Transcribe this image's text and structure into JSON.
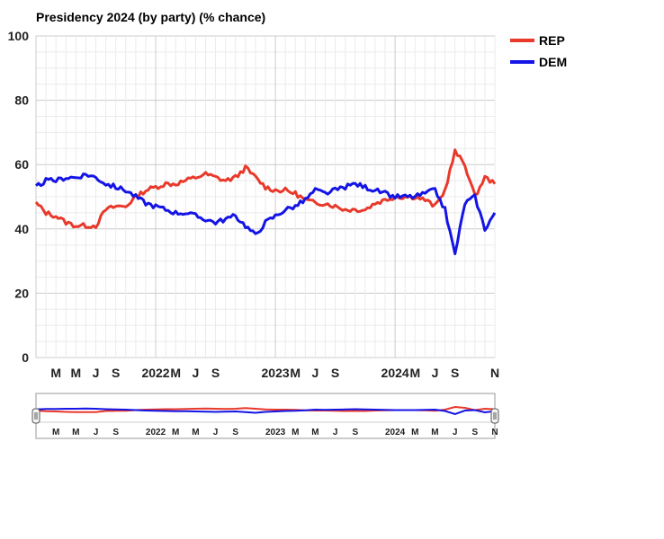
{
  "chart_data": {
    "type": "line",
    "title": "Presidency 2024 (by party) (% chance)",
    "ylim": [
      0,
      100
    ],
    "y_ticks": [
      "0",
      "20",
      "40",
      "60",
      "80",
      "100"
    ],
    "x_tick_labels": [
      "M",
      "M",
      "J",
      "S",
      "2022",
      "M",
      "J",
      "S",
      "2023",
      "M",
      "J",
      "S",
      "2024",
      "M",
      "J",
      "S",
      "N"
    ],
    "x_range": [
      "2021-01",
      "2024-11"
    ],
    "legend_position": "top-right",
    "series": [
      {
        "name": "REP",
        "color": "#e8392b",
        "x": [
          "2021-01",
          "2021-02",
          "2021-03",
          "2021-04",
          "2021-05",
          "2021-06",
          "2021-07",
          "2021-08",
          "2021-09",
          "2021-10",
          "2021-11",
          "2021-12",
          "2022-01",
          "2022-02",
          "2022-03",
          "2022-04",
          "2022-05",
          "2022-06",
          "2022-07",
          "2022-08",
          "2022-09",
          "2022-10",
          "2022-11",
          "2022-12",
          "2023-01",
          "2023-02",
          "2023-03",
          "2023-04",
          "2023-05",
          "2023-06",
          "2023-07",
          "2023-08",
          "2023-09",
          "2023-10",
          "2023-11",
          "2023-12",
          "2024-01",
          "2024-02",
          "2024-03",
          "2024-04",
          "2024-05",
          "2024-06",
          "2024-07",
          "2024-08",
          "2024-09",
          "2024-10",
          "2024-11"
        ],
        "values": [
          48,
          45,
          44,
          42,
          41,
          41,
          41,
          46,
          47,
          47,
          50,
          52,
          53,
          54,
          54,
          55,
          56,
          57,
          56,
          55,
          56,
          59,
          56,
          53,
          52,
          52,
          51,
          49,
          48,
          48,
          47,
          46,
          46,
          46,
          48,
          49,
          50,
          50,
          50,
          49,
          47,
          52,
          64,
          60,
          50,
          56,
          54
        ]
      },
      {
        "name": "DEM",
        "color": "#1414e6",
        "x": [
          "2021-01",
          "2021-02",
          "2021-03",
          "2021-04",
          "2021-05",
          "2021-06",
          "2021-07",
          "2021-08",
          "2021-09",
          "2021-10",
          "2021-11",
          "2021-12",
          "2022-01",
          "2022-02",
          "2022-03",
          "2022-04",
          "2022-05",
          "2022-06",
          "2022-07",
          "2022-08",
          "2022-09",
          "2022-10",
          "2022-11",
          "2022-12",
          "2023-01",
          "2023-02",
          "2023-03",
          "2023-04",
          "2023-05",
          "2023-06",
          "2023-07",
          "2023-08",
          "2023-09",
          "2023-10",
          "2023-11",
          "2023-12",
          "2024-01",
          "2024-02",
          "2024-03",
          "2024-04",
          "2024-05",
          "2024-06",
          "2024-07",
          "2024-08",
          "2024-09",
          "2024-10",
          "2024-11"
        ],
        "values": [
          53,
          55,
          55,
          56,
          56,
          57,
          56,
          54,
          53,
          52,
          50,
          48,
          47,
          46,
          45,
          45,
          44,
          43,
          42,
          43,
          44,
          41,
          38,
          42,
          44,
          46,
          47,
          49,
          52,
          51,
          52,
          53,
          54,
          53,
          52,
          51,
          50,
          50,
          50,
          51,
          52,
          46,
          32,
          48,
          50,
          40,
          45
        ]
      }
    ],
    "range_selector": {
      "x_tick_labels": [
        "M",
        "M",
        "J",
        "S",
        "2022",
        "M",
        "M",
        "J",
        "S",
        "2023",
        "M",
        "M",
        "J",
        "S",
        "2024",
        "M",
        "M",
        "J",
        "S",
        "N"
      ]
    }
  }
}
